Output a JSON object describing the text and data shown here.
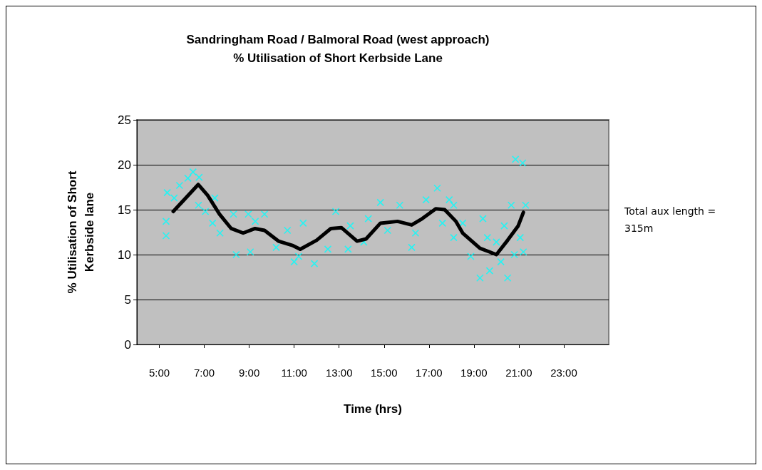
{
  "chart_data": {
    "type": "scatter",
    "title": "Sandringham Road / Balmoral Road (west approach)\n% Utilisation of Short Kerbside Lane",
    "xlabel": "Time (hrs)",
    "ylabel": "% Utilisation of Short\nKerbside lane",
    "annotations": [
      "Total aux length = 315m"
    ],
    "xlim": [
      4,
      25
    ],
    "xticks": [
      {
        "value": 5,
        "label": "5:00"
      },
      {
        "value": 7,
        "label": "7:00"
      },
      {
        "value": 9,
        "label": "9:00"
      },
      {
        "value": 11,
        "label": "11:00"
      },
      {
        "value": 13,
        "label": "13:00"
      },
      {
        "value": 15,
        "label": "15:00"
      },
      {
        "value": 17,
        "label": "17:00"
      },
      {
        "value": 19,
        "label": "19:00"
      },
      {
        "value": 21,
        "label": "21:00"
      },
      {
        "value": 23,
        "label": "23:00"
      }
    ],
    "ylim": [
      0,
      25
    ],
    "yticks": [
      0,
      5,
      10,
      15,
      20,
      25
    ],
    "grid": "y",
    "series": [
      {
        "marker": "cross",
        "color": "#00ffff",
        "x": [
          5.3,
          5.3,
          5.35,
          5.66,
          5.9,
          6.27,
          6.5,
          6.77,
          6.74,
          7.05,
          7.47,
          7.37,
          7.7,
          8.3,
          8.42,
          8.96,
          9.05,
          9.68,
          9.27,
          10.2,
          10.7,
          11.0,
          11.2,
          11.9,
          11.4,
          12.5,
          12.85,
          13.4,
          13.5,
          14.1,
          14.3,
          14.84,
          15.16,
          15.7,
          16.23,
          16.4,
          16.87,
          17.37,
          17.6,
          17.9,
          18.1,
          18.1,
          18.5,
          18.86,
          19.4,
          19.27,
          19.6,
          19.7,
          20.2,
          20.5,
          20.66,
          20.85,
          21.17,
          21.3,
          20.8,
          21.2,
          21.06,
          20.35,
          20.0
        ],
        "values": [
          12.1,
          13.7,
          16.9,
          16.3,
          17.7,
          18.5,
          19.2,
          18.6,
          15.5,
          14.8,
          16.3,
          13.5,
          12.4,
          14.5,
          10.0,
          14.5,
          10.3,
          14.5,
          13.7,
          10.8,
          12.7,
          9.2,
          9.8,
          9.0,
          13.5,
          10.6,
          14.8,
          10.6,
          13.2,
          11.4,
          14.0,
          15.8,
          12.7,
          15.5,
          10.8,
          12.4,
          16.1,
          17.4,
          13.5,
          16.1,
          15.5,
          11.9,
          13.5,
          9.8,
          14.0,
          7.4,
          11.9,
          8.2,
          9.2,
          7.4,
          15.5,
          20.6,
          20.2,
          15.5,
          10.0,
          10.3,
          11.9,
          13.2,
          11.4
        ]
      },
      {
        "type": "line",
        "marker": "none",
        "color": "#000000",
        "x": [
          5.62,
          6.73,
          7.15,
          7.68,
          8.2,
          8.73,
          9.26,
          9.68,
          10.3,
          10.95,
          11.27,
          12.0,
          12.63,
          13.1,
          13.8,
          14.2,
          14.84,
          15.6,
          16.23,
          16.7,
          17.3,
          17.7,
          18.2,
          18.5,
          19.27,
          19.7,
          20.0,
          20.5,
          20.97,
          21.2
        ],
        "values": [
          14.8,
          17.8,
          16.6,
          14.5,
          12.9,
          12.4,
          12.9,
          12.7,
          11.5,
          11.0,
          10.6,
          11.6,
          12.9,
          13.0,
          11.5,
          11.75,
          13.5,
          13.7,
          13.3,
          14.0,
          15.1,
          15.0,
          13.7,
          12.4,
          10.7,
          10.3,
          10.0,
          11.6,
          13.2,
          14.7
        ]
      }
    ]
  }
}
